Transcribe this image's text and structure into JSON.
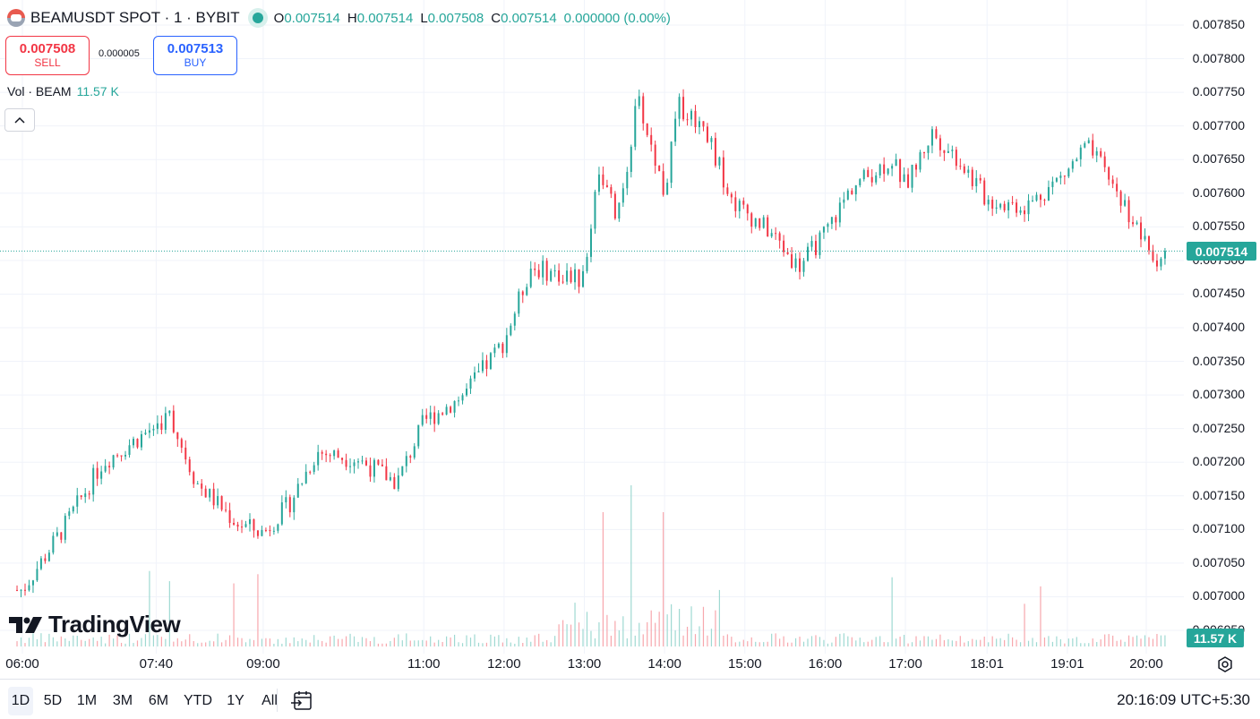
{
  "header": {
    "symbol_title": "BEAMUSDT SPOT · 1 · BYBIT",
    "ohlc": [
      {
        "key": "O",
        "value": "0.007514"
      },
      {
        "key": "H",
        "value": "0.007514"
      },
      {
        "key": "L",
        "value": "0.007508"
      },
      {
        "key": "C",
        "value": "0.007514"
      }
    ],
    "change": "0.000000 (0.00%)"
  },
  "trade": {
    "sell_price": "0.007508",
    "sell_label": "SELL",
    "spread": "0.000005",
    "buy_price": "0.007513",
    "buy_label": "BUY"
  },
  "volume_legend": {
    "label": "Vol · BEAM",
    "value": "11.57 K"
  },
  "price_axis": [
    "0.007850",
    "0.007800",
    "0.007750",
    "0.007700",
    "0.007650",
    "0.007600",
    "0.007550",
    "0.007500",
    "0.007450",
    "0.007400",
    "0.007350",
    "0.007300",
    "0.007250",
    "0.007200",
    "0.007150",
    "0.007100",
    "0.007050",
    "0.007000",
    "0.006950"
  ],
  "current_price_tag": "0.007514",
  "volume_tag": "11.57 K",
  "time_axis": [
    "06:00",
    "07:40",
    "09:00",
    "11:00",
    "12:00",
    "13:00",
    "14:00",
    "15:00",
    "16:00",
    "17:00",
    "18:01",
    "19:01",
    "20:00"
  ],
  "range_buttons": [
    "1D",
    "5D",
    "1M",
    "3M",
    "6M",
    "YTD",
    "1Y",
    "All"
  ],
  "active_range": "1D",
  "clock": "20:16:09 UTC+5:30",
  "branding": "TradingView",
  "colors": {
    "up": "#26a69a",
    "down": "#f23645",
    "vol_up": "#9fd9d2",
    "vol_down": "#f7a7ad",
    "grid": "#f0f3fa"
  },
  "chart_data": {
    "type": "candlestick",
    "interval": "1 minute",
    "x_range": [
      "05:56",
      "20:16"
    ],
    "ylim": [
      0.00695,
      0.00785
    ],
    "last_price": 0.007514,
    "price_path": [
      {
        "time": "06:00",
        "price": 0.00701
      },
      {
        "time": "06:30",
        "price": 0.0071
      },
      {
        "time": "07:00",
        "price": 0.0072
      },
      {
        "time": "07:30",
        "price": 0.00724
      },
      {
        "time": "07:50",
        "price": 0.00727
      },
      {
        "time": "08:10",
        "price": 0.00717
      },
      {
        "time": "08:40",
        "price": 0.00711
      },
      {
        "time": "09:00",
        "price": 0.007095
      },
      {
        "time": "09:20",
        "price": 0.00714
      },
      {
        "time": "09:40",
        "price": 0.007215
      },
      {
        "time": "10:10",
        "price": 0.007205
      },
      {
        "time": "10:40",
        "price": 0.00717
      },
      {
        "time": "11:00",
        "price": 0.00726
      },
      {
        "time": "11:30",
        "price": 0.0073
      },
      {
        "time": "12:00",
        "price": 0.00738
      },
      {
        "time": "12:20",
        "price": 0.00749
      },
      {
        "time": "12:40",
        "price": 0.00748
      },
      {
        "time": "13:00",
        "price": 0.00747
      },
      {
        "time": "13:10",
        "price": 0.00764
      },
      {
        "time": "13:25",
        "price": 0.00756
      },
      {
        "time": "13:40",
        "price": 0.00774
      },
      {
        "time": "14:00",
        "price": 0.0076
      },
      {
        "time": "14:10",
        "price": 0.00773
      },
      {
        "time": "14:30",
        "price": 0.0077
      },
      {
        "time": "14:50",
        "price": 0.00759
      },
      {
        "time": "15:20",
        "price": 0.00754
      },
      {
        "time": "15:40",
        "price": 0.00749
      },
      {
        "time": "16:00",
        "price": 0.00754
      },
      {
        "time": "16:20",
        "price": 0.00761
      },
      {
        "time": "16:50",
        "price": 0.00765
      },
      {
        "time": "17:00",
        "price": 0.00761
      },
      {
        "time": "17:20",
        "price": 0.00769
      },
      {
        "time": "17:40",
        "price": 0.00765
      },
      {
        "time": "18:01",
        "price": 0.00759
      },
      {
        "time": "18:30",
        "price": 0.00758
      },
      {
        "time": "19:00",
        "price": 0.00763
      },
      {
        "time": "19:15",
        "price": 0.00767
      },
      {
        "time": "19:30",
        "price": 0.00763
      },
      {
        "time": "19:50",
        "price": 0.00756
      },
      {
        "time": "20:05",
        "price": 0.0075
      },
      {
        "time": "20:16",
        "price": 0.007514
      }
    ],
    "volume_peaks": [
      {
        "time": "13:15",
        "volume": "high"
      },
      {
        "time": "13:35",
        "volume": "highest"
      },
      {
        "time": "14:00",
        "volume": "high"
      }
    ]
  }
}
